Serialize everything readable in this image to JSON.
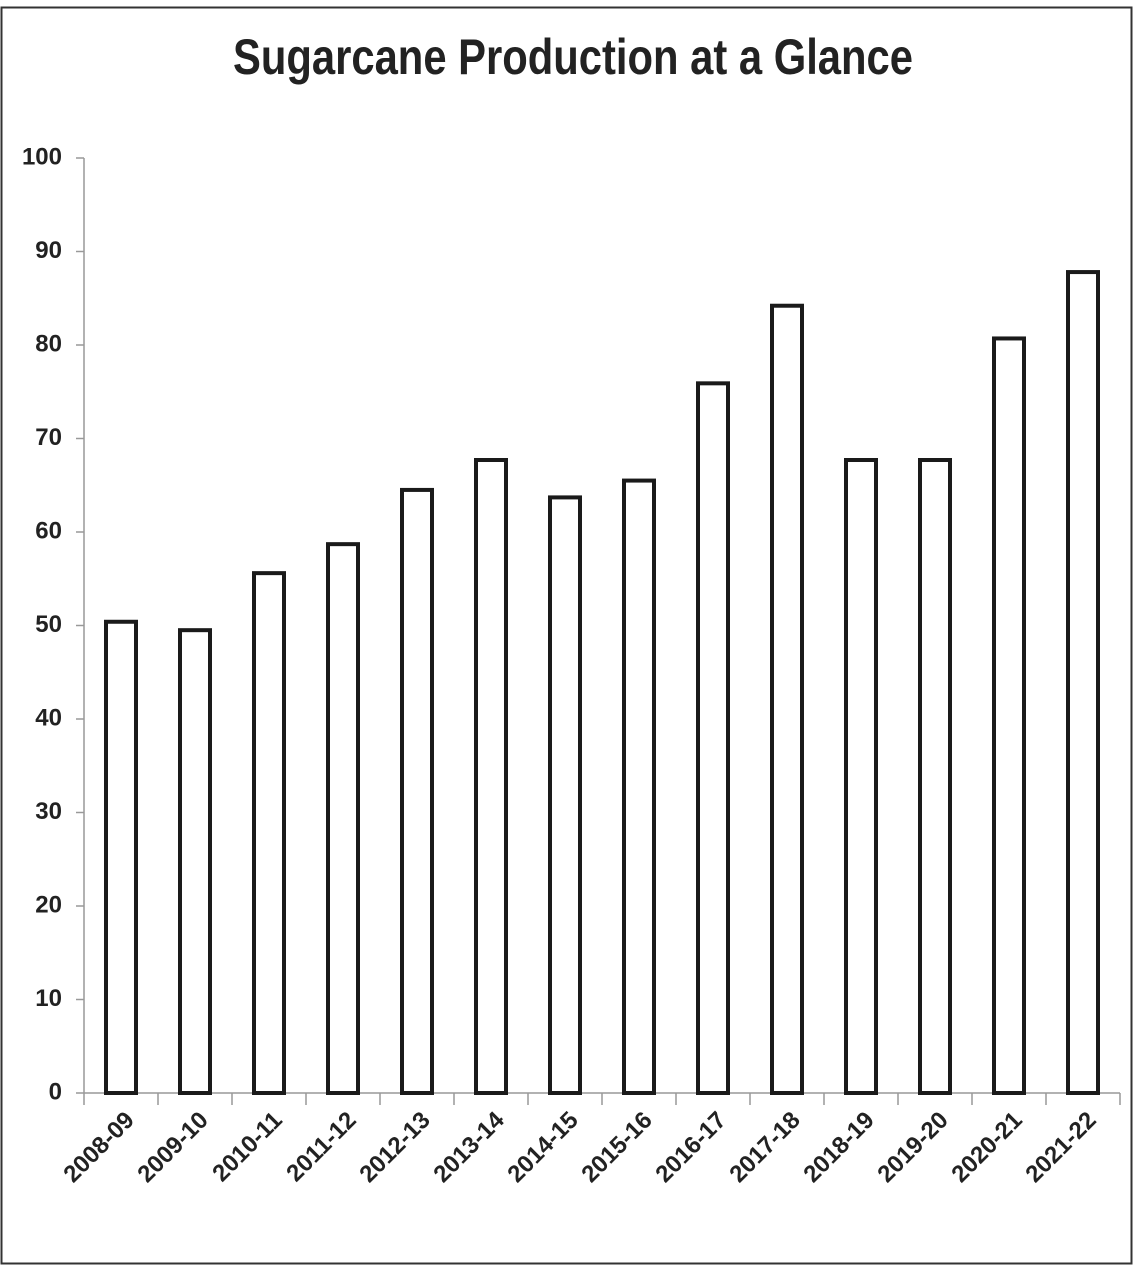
{
  "chart_data": {
    "type": "bar",
    "title": "Sugarcane Production at a Glance",
    "categories": [
      "2008-09",
      "2009-10",
      "2010-11",
      "2011-12",
      "2012-13",
      "2013-14",
      "2014-15",
      "2015-16",
      "2016-17",
      "2017-18",
      "2018-19",
      "2019-20",
      "2020-21",
      "2021-22"
    ],
    "values": [
      50.4,
      49.5,
      55.6,
      58.7,
      64.5,
      67.7,
      63.7,
      65.5,
      75.9,
      84.2,
      67.7,
      67.7,
      80.7,
      87.8
    ],
    "color": "#ffffff",
    "edgecolor": "#1a1a1a",
    "ylim": [
      0,
      100
    ],
    "yticks": [
      0,
      10,
      20,
      30,
      40,
      50,
      60,
      70,
      80,
      90,
      100
    ],
    "grid": false
  }
}
